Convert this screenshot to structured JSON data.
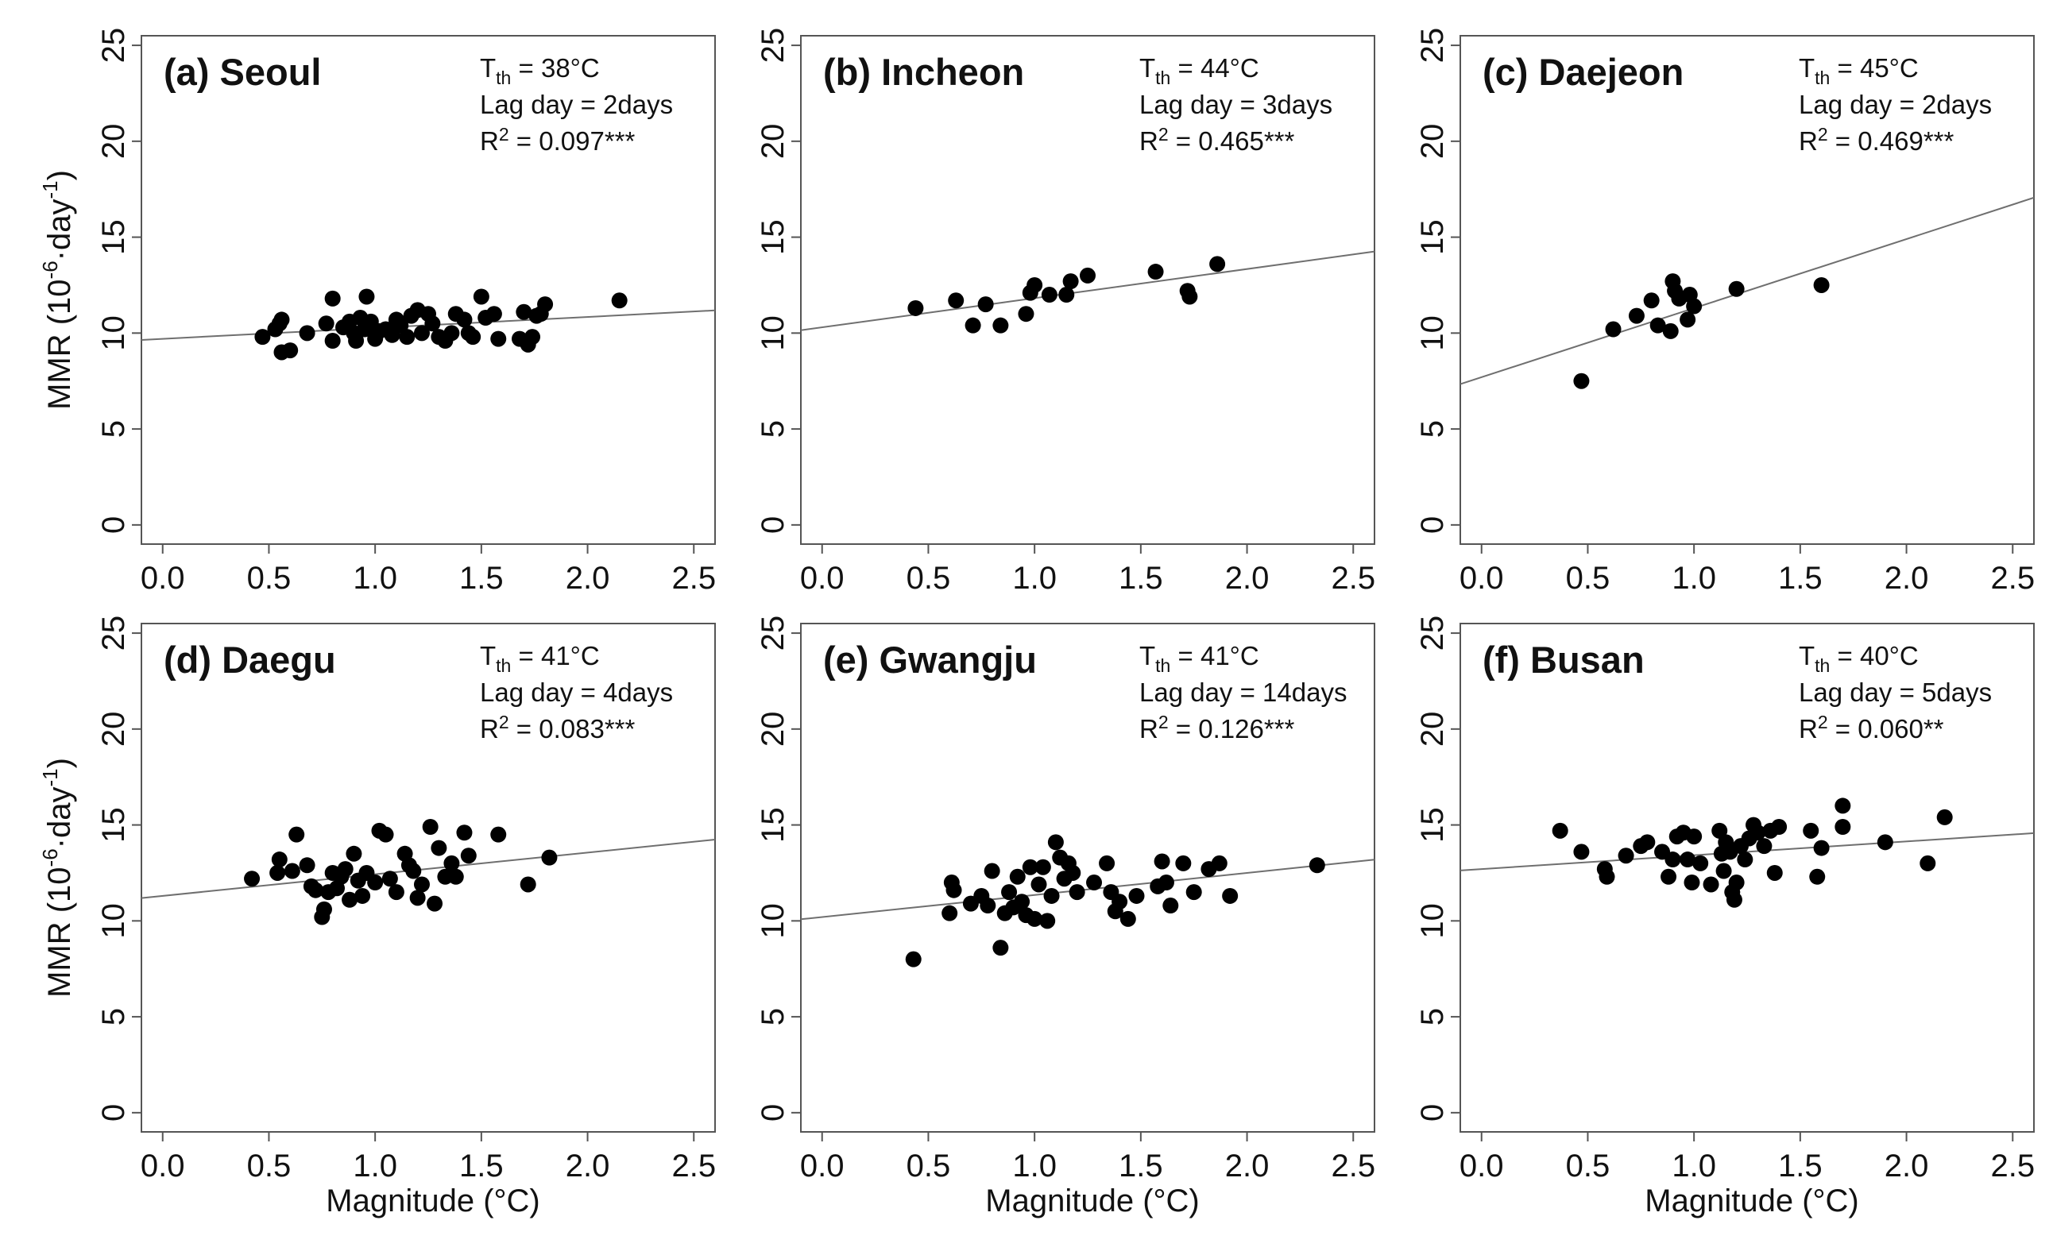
{
  "figure": {
    "ylabel": "MMR (10",
    "ylabel_exp1": "-6",
    "ylabel_mid": "·day",
    "ylabel_exp2": "-1",
    "ylabel_end": ")",
    "xlabel": "Magnitude (°C)"
  },
  "chart_data": [
    {
      "type": "scatter",
      "title": "(a) Seoul",
      "annotation": {
        "tth_label": "T",
        "tth_sub": "th",
        "tth_value": " = 38°C",
        "lag": "Lag day = 2days",
        "r2_label": "R",
        "r2_sup": "2",
        "r2_value": " = 0.097***"
      },
      "xlim": [
        -0.1,
        2.6
      ],
      "ylim": [
        -1,
        25.5
      ],
      "xticks": [
        "0.0",
        "0.5",
        "1.0",
        "1.5",
        "2.0",
        "2.5"
      ],
      "yticks": [
        "0",
        "5",
        "10",
        "15",
        "20",
        "25"
      ],
      "fit": {
        "intercept": 9.7,
        "slope": 0.57
      },
      "points": [
        [
          0.47,
          9.8
        ],
        [
          0.53,
          10.2
        ],
        [
          0.55,
          10.5
        ],
        [
          0.56,
          10.7
        ],
        [
          0.56,
          9.0
        ],
        [
          0.6,
          9.1
        ],
        [
          0.68,
          10.0
        ],
        [
          0.77,
          10.5
        ],
        [
          0.8,
          11.8
        ],
        [
          0.8,
          9.6
        ],
        [
          0.85,
          10.3
        ],
        [
          0.88,
          10.6
        ],
        [
          0.9,
          10.0
        ],
        [
          0.91,
          9.6
        ],
        [
          0.93,
          10.8
        ],
        [
          0.95,
          10.2
        ],
        [
          0.96,
          11.9
        ],
        [
          0.98,
          10.6
        ],
        [
          1.0,
          9.7
        ],
        [
          1.02,
          10.1
        ],
        [
          1.05,
          10.2
        ],
        [
          1.08,
          9.9
        ],
        [
          1.1,
          10.7
        ],
        [
          1.12,
          10.4
        ],
        [
          1.15,
          9.8
        ],
        [
          1.17,
          10.9
        ],
        [
          1.2,
          11.2
        ],
        [
          1.22,
          10.0
        ],
        [
          1.25,
          11.0
        ],
        [
          1.27,
          10.5
        ],
        [
          1.3,
          9.8
        ],
        [
          1.33,
          9.6
        ],
        [
          1.36,
          10.0
        ],
        [
          1.38,
          11.0
        ],
        [
          1.42,
          10.7
        ],
        [
          1.44,
          10.0
        ],
        [
          1.46,
          9.8
        ],
        [
          1.5,
          11.9
        ],
        [
          1.52,
          10.8
        ],
        [
          1.56,
          11.0
        ],
        [
          1.58,
          9.7
        ],
        [
          1.68,
          9.7
        ],
        [
          1.7,
          11.1
        ],
        [
          1.72,
          9.4
        ],
        [
          1.74,
          9.8
        ],
        [
          1.76,
          10.9
        ],
        [
          1.78,
          11.0
        ],
        [
          1.8,
          11.5
        ],
        [
          2.15,
          11.7
        ]
      ]
    },
    {
      "type": "scatter",
      "title": "(b) Incheon",
      "annotation": {
        "tth_label": "T",
        "tth_sub": "th",
        "tth_value": " = 44°C",
        "lag": "Lag day = 3days",
        "r2_label": "R",
        "r2_sup": "2",
        "r2_value": " = 0.465***"
      },
      "xlim": [
        -0.1,
        2.6
      ],
      "ylim": [
        -1,
        25.5
      ],
      "xticks": [
        "0.0",
        "0.5",
        "1.0",
        "1.5",
        "2.0",
        "2.5"
      ],
      "yticks": [
        "0",
        "5",
        "10",
        "15",
        "20",
        "25"
      ],
      "fit": {
        "intercept": 10.3,
        "slope": 1.52
      },
      "points": [
        [
          0.44,
          11.3
        ],
        [
          0.63,
          11.7
        ],
        [
          0.71,
          10.4
        ],
        [
          0.77,
          11.5
        ],
        [
          0.84,
          10.4
        ],
        [
          0.96,
          11.0
        ],
        [
          0.98,
          12.1
        ],
        [
          1.0,
          12.5
        ],
        [
          1.07,
          12.0
        ],
        [
          1.15,
          12.0
        ],
        [
          1.17,
          12.7
        ],
        [
          1.25,
          13.0
        ],
        [
          1.57,
          13.2
        ],
        [
          1.72,
          12.2
        ],
        [
          1.73,
          11.9
        ],
        [
          1.86,
          13.6
        ]
      ]
    },
    {
      "type": "scatter",
      "title": "(c) Daejeon",
      "annotation": {
        "tth_label": "T",
        "tth_sub": "th",
        "tth_value": " = 45°C",
        "lag": "Lag day = 2days",
        "r2_label": "R",
        "r2_sup": "2",
        "r2_value": " = 0.469***"
      },
      "xlim": [
        -0.1,
        2.6
      ],
      "ylim": [
        -1,
        25.5
      ],
      "xticks": [
        "0.0",
        "0.5",
        "1.0",
        "1.5",
        "2.0",
        "2.5"
      ],
      "yticks": [
        "0",
        "5",
        "10",
        "15",
        "20",
        "25"
      ],
      "fit": {
        "intercept": 7.7,
        "slope": 3.6
      },
      "points": [
        [
          0.47,
          7.5
        ],
        [
          0.62,
          10.2
        ],
        [
          0.73,
          10.9
        ],
        [
          0.8,
          11.7
        ],
        [
          0.83,
          10.4
        ],
        [
          0.89,
          10.1
        ],
        [
          0.9,
          12.7
        ],
        [
          0.91,
          12.2
        ],
        [
          0.93,
          11.8
        ],
        [
          0.97,
          10.7
        ],
        [
          0.98,
          12.0
        ],
        [
          1.0,
          11.4
        ],
        [
          1.2,
          12.3
        ],
        [
          1.6,
          12.5
        ]
      ]
    },
    {
      "type": "scatter",
      "title": "(d) Daegu",
      "annotation": {
        "tth_label": "T",
        "tth_sub": "th",
        "tth_value": " = 41°C",
        "lag": "Lag day = 4days",
        "r2_label": "R",
        "r2_sup": "2",
        "r2_value": " = 0.083***"
      },
      "xlim": [
        -0.1,
        2.6
      ],
      "ylim": [
        -1,
        25.5
      ],
      "xticks": [
        "0.0",
        "0.5",
        "1.0",
        "1.5",
        "2.0",
        "2.5"
      ],
      "yticks": [
        "0",
        "5",
        "10",
        "15",
        "20",
        "25"
      ],
      "fit": {
        "intercept": 11.3,
        "slope": 1.13
      },
      "points": [
        [
          0.42,
          12.2
        ],
        [
          0.54,
          12.5
        ],
        [
          0.55,
          13.2
        ],
        [
          0.61,
          12.6
        ],
        [
          0.63,
          14.5
        ],
        [
          0.68,
          12.9
        ],
        [
          0.7,
          11.8
        ],
        [
          0.72,
          11.6
        ],
        [
          0.75,
          10.2
        ],
        [
          0.76,
          10.6
        ],
        [
          0.78,
          11.5
        ],
        [
          0.8,
          12.5
        ],
        [
          0.82,
          11.7
        ],
        [
          0.84,
          12.3
        ],
        [
          0.86,
          12.7
        ],
        [
          0.88,
          11.1
        ],
        [
          0.9,
          13.5
        ],
        [
          0.92,
          12.1
        ],
        [
          0.94,
          11.3
        ],
        [
          0.96,
          12.5
        ],
        [
          1.0,
          12.0
        ],
        [
          1.02,
          14.7
        ],
        [
          1.05,
          14.5
        ],
        [
          1.07,
          12.2
        ],
        [
          1.1,
          11.5
        ],
        [
          1.14,
          13.5
        ],
        [
          1.16,
          12.9
        ],
        [
          1.18,
          12.6
        ],
        [
          1.2,
          11.2
        ],
        [
          1.22,
          11.9
        ],
        [
          1.26,
          14.9
        ],
        [
          1.28,
          10.9
        ],
        [
          1.3,
          13.8
        ],
        [
          1.33,
          12.3
        ],
        [
          1.36,
          13.0
        ],
        [
          1.38,
          12.3
        ],
        [
          1.42,
          14.6
        ],
        [
          1.44,
          13.4
        ],
        [
          1.58,
          14.5
        ],
        [
          1.72,
          11.9
        ],
        [
          1.82,
          13.3
        ]
      ]
    },
    {
      "type": "scatter",
      "title": "(e) Gwangju",
      "annotation": {
        "tth_label": "T",
        "tth_sub": "th",
        "tth_value": " = 41°C",
        "lag": "Lag day = 14days",
        "r2_label": "R",
        "r2_sup": "2",
        "r2_value": " = 0.126***"
      },
      "xlim": [
        -0.1,
        2.6
      ],
      "ylim": [
        -1,
        25.5
      ],
      "xticks": [
        "0.0",
        "0.5",
        "1.0",
        "1.5",
        "2.0",
        "2.5"
      ],
      "yticks": [
        "0",
        "5",
        "10",
        "15",
        "20",
        "25"
      ],
      "fit": {
        "intercept": 10.2,
        "slope": 1.15
      },
      "points": [
        [
          0.43,
          8.0
        ],
        [
          0.6,
          10.4
        ],
        [
          0.61,
          12.0
        ],
        [
          0.62,
          11.6
        ],
        [
          0.7,
          10.9
        ],
        [
          0.75,
          11.3
        ],
        [
          0.78,
          10.8
        ],
        [
          0.8,
          12.6
        ],
        [
          0.84,
          8.6
        ],
        [
          0.86,
          10.4
        ],
        [
          0.88,
          11.5
        ],
        [
          0.9,
          10.7
        ],
        [
          0.92,
          12.3
        ],
        [
          0.94,
          11.0
        ],
        [
          0.96,
          10.3
        ],
        [
          0.98,
          12.8
        ],
        [
          1.0,
          10.1
        ],
        [
          1.02,
          11.9
        ],
        [
          1.04,
          12.8
        ],
        [
          1.06,
          10.0
        ],
        [
          1.08,
          11.3
        ],
        [
          1.1,
          14.1
        ],
        [
          1.12,
          13.3
        ],
        [
          1.14,
          12.2
        ],
        [
          1.16,
          13.0
        ],
        [
          1.18,
          12.5
        ],
        [
          1.2,
          11.5
        ],
        [
          1.28,
          12.0
        ],
        [
          1.34,
          13.0
        ],
        [
          1.36,
          11.5
        ],
        [
          1.38,
          10.5
        ],
        [
          1.4,
          11.0
        ],
        [
          1.44,
          10.1
        ],
        [
          1.48,
          11.3
        ],
        [
          1.58,
          11.8
        ],
        [
          1.6,
          13.1
        ],
        [
          1.62,
          12.0
        ],
        [
          1.64,
          10.8
        ],
        [
          1.7,
          13.0
        ],
        [
          1.75,
          11.5
        ],
        [
          1.82,
          12.7
        ],
        [
          1.87,
          13.0
        ],
        [
          1.92,
          11.3
        ],
        [
          2.33,
          12.9
        ]
      ]
    },
    {
      "type": "scatter",
      "title": "(f) Busan",
      "annotation": {
        "tth_label": "T",
        "tth_sub": "th",
        "tth_value": " = 40°C",
        "lag": "Lag day = 5days",
        "r2_label": "R",
        "r2_sup": "2",
        "r2_value": " = 0.060**"
      },
      "xlim": [
        -0.1,
        2.6
      ],
      "ylim": [
        -1,
        25.5
      ],
      "xticks": [
        "0.0",
        "0.5",
        "1.0",
        "1.5",
        "2.0",
        "2.5"
      ],
      "yticks": [
        "0",
        "5",
        "10",
        "15",
        "20",
        "25"
      ],
      "fit": {
        "intercept": 12.7,
        "slope": 0.72
      },
      "points": [
        [
          0.37,
          14.7
        ],
        [
          0.47,
          13.6
        ],
        [
          0.58,
          12.7
        ],
        [
          0.59,
          12.3
        ],
        [
          0.68,
          13.4
        ],
        [
          0.75,
          13.9
        ],
        [
          0.78,
          14.1
        ],
        [
          0.85,
          13.6
        ],
        [
          0.88,
          12.3
        ],
        [
          0.9,
          13.2
        ],
        [
          0.92,
          14.4
        ],
        [
          0.95,
          14.6
        ],
        [
          0.97,
          13.2
        ],
        [
          0.99,
          12.0
        ],
        [
          1.0,
          14.4
        ],
        [
          1.03,
          13.0
        ],
        [
          1.08,
          11.9
        ],
        [
          1.12,
          14.7
        ],
        [
          1.13,
          13.5
        ],
        [
          1.14,
          12.6
        ],
        [
          1.15,
          14.1
        ],
        [
          1.17,
          13.6
        ],
        [
          1.18,
          11.5
        ],
        [
          1.19,
          11.1
        ],
        [
          1.2,
          12.0
        ],
        [
          1.22,
          13.9
        ],
        [
          1.24,
          13.2
        ],
        [
          1.26,
          14.3
        ],
        [
          1.28,
          15.0
        ],
        [
          1.3,
          14.6
        ],
        [
          1.33,
          13.9
        ],
        [
          1.36,
          14.7
        ],
        [
          1.38,
          12.5
        ],
        [
          1.4,
          14.9
        ],
        [
          1.55,
          14.7
        ],
        [
          1.58,
          12.3
        ],
        [
          1.6,
          13.8
        ],
        [
          1.7,
          16.0
        ],
        [
          1.7,
          14.9
        ],
        [
          1.9,
          14.1
        ],
        [
          2.1,
          13.0
        ],
        [
          2.18,
          15.4
        ]
      ]
    }
  ]
}
